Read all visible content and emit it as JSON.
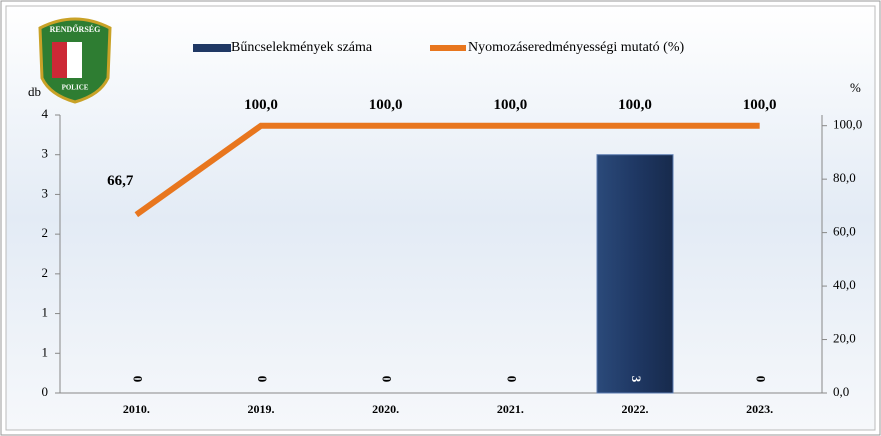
{
  "logo": {
    "top": "RENDŐRSÉG",
    "bottom": "POLICE"
  },
  "chart_data": {
    "type": "bar-line",
    "y_label": "db",
    "y2_label": "%",
    "categories": [
      "2010.",
      "2019.",
      "2020.",
      "2021.",
      "2022.",
      "2023."
    ],
    "series": [
      {
        "name": "Bűncselekmények száma",
        "type": "bar",
        "color": "#1f3864",
        "values": [
          0,
          0,
          0,
          0,
          3,
          0
        ]
      },
      {
        "name": "Nyomozáseredményességi mutató (%)",
        "type": "line",
        "axis": "y2",
        "color": "#e8761e",
        "values": [
          66.7,
          100,
          100,
          100,
          100,
          100
        ],
        "value_labels": [
          "66,7",
          "100,0",
          "100,0",
          "100,0",
          "100,0",
          "100,0"
        ]
      }
    ],
    "ylim": [
      0,
      3.5
    ],
    "yticks": [
      0,
      {
        "value": 0.5,
        "label": "1"
      },
      1,
      {
        "value": 1.5,
        "label": "2"
      },
      2,
      {
        "value": 2.5,
        "label": "3"
      },
      3,
      {
        "value": 3.5,
        "label": "4"
      }
    ],
    "y2lim": [
      0,
      104
    ],
    "y2ticks": [
      {
        "value": 0,
        "label": "0,0"
      },
      {
        "value": 20,
        "label": "20,0"
      },
      {
        "value": 40,
        "label": "40,0"
      },
      {
        "value": 60,
        "label": "60,0"
      },
      {
        "value": 80,
        "label": "80,0"
      },
      {
        "value": 100,
        "label": "100,0"
      }
    ]
  }
}
